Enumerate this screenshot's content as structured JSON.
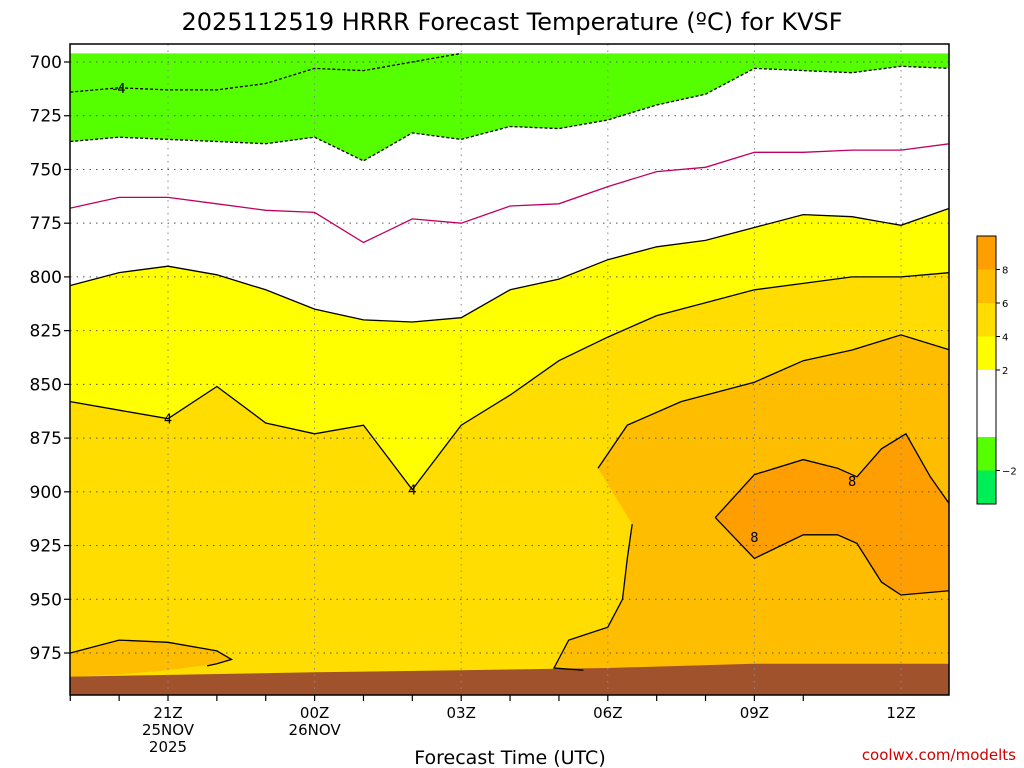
{
  "chart_data": {
    "type": "contour",
    "title": "2025112519 HRRR Forecast Temperature (ºC) for KVSF",
    "xlabel": "Forecast Time (UTC)",
    "credit": "coolwx.com/modelts",
    "y_ticks": [
      "700",
      "725",
      "750",
      "775",
      "800",
      "825",
      "850",
      "875",
      "900",
      "925",
      "950",
      "975"
    ],
    "y_levels": [
      700,
      725,
      750,
      775,
      800,
      825,
      850,
      875,
      900,
      925,
      950,
      975
    ],
    "ylim": [
      696,
      990
    ],
    "x_hours": [
      -2,
      -1,
      0,
      1,
      2,
      3,
      4,
      5,
      6,
      7,
      8,
      9,
      10,
      11,
      12,
      13
    ],
    "x_ticks": [
      {
        "hour": 0,
        "lines": [
          "21Z",
          "25NOV",
          "2025"
        ]
      },
      {
        "hour": 3,
        "lines": [
          "00Z",
          "26NOV"
        ]
      },
      {
        "hour": 6,
        "lines": [
          "03Z"
        ]
      },
      {
        "hour": 9,
        "lines": [
          "06Z"
        ]
      },
      {
        "hour": 12,
        "lines": [
          "09Z"
        ]
      },
      {
        "hour": 15,
        "lines": [
          "12Z"
        ]
      }
    ],
    "xlim": [
      -2,
      16
    ],
    "grid": true,
    "legend": "right",
    "colorbar": [
      {
        "label": "8",
        "from": 8,
        "to": 10,
        "color": "#ff9e00"
      },
      {
        "label": "6",
        "from": 6,
        "to": 8,
        "color": "#ffbd00"
      },
      {
        "label": "4",
        "from": 4,
        "to": 6,
        "color": "#ffdd00"
      },
      {
        "label": "2",
        "from": 2,
        "to": 4,
        "color": "#ffff00"
      },
      {
        "label": "",
        "from": -2,
        "to": 2,
        "color": "#ffffff"
      },
      {
        "label": "−2",
        "from": -4,
        "to": -2,
        "color": "#55ff00"
      },
      {
        "label": "",
        "from": -6,
        "to": -4,
        "color": "#00ee55"
      }
    ],
    "ground_color": "#a0522d",
    "surface_pressure": [
      [
        -2,
        986
      ],
      [
        3,
        984
      ],
      [
        6,
        983
      ],
      [
        9,
        982
      ],
      [
        12,
        980
      ],
      [
        16,
        980
      ]
    ],
    "fill_bands": [
      {
        "name": "-2 to -4",
        "color": "#55ff00",
        "top": [
          [
            -2,
            696
          ],
          [
            16,
            696
          ]
        ],
        "bottom": [
          [
            -2,
            737
          ],
          [
            -1,
            735
          ],
          [
            0,
            736
          ],
          [
            1,
            737
          ],
          [
            2,
            738
          ],
          [
            3,
            735
          ],
          [
            4,
            746
          ],
          [
            5,
            733
          ],
          [
            6,
            736
          ],
          [
            7,
            730
          ],
          [
            8,
            731
          ],
          [
            9,
            727
          ],
          [
            10,
            720
          ],
          [
            11,
            715
          ],
          [
            12,
            703
          ],
          [
            13,
            704
          ],
          [
            14,
            705
          ],
          [
            15,
            702
          ],
          [
            16,
            703
          ]
        ]
      },
      {
        "name": "2 to 4",
        "color": "#ffff00",
        "top": [
          [
            -2,
            804
          ],
          [
            -1,
            798
          ],
          [
            0,
            795
          ],
          [
            1,
            799
          ],
          [
            2,
            806
          ],
          [
            3,
            815
          ],
          [
            4,
            820
          ],
          [
            5,
            821
          ],
          [
            6,
            819
          ],
          [
            7,
            806
          ],
          [
            8,
            801
          ],
          [
            9,
            792
          ],
          [
            10,
            786
          ],
          [
            11,
            783
          ],
          [
            12,
            777
          ],
          [
            13,
            771
          ],
          [
            14,
            772
          ],
          [
            15,
            776
          ],
          [
            16,
            768
          ]
        ],
        "bottom": [
          [
            -2,
            986
          ],
          [
            16,
            980
          ]
        ]
      },
      {
        "name": "4 to 6",
        "color": "#ffdd00",
        "top": [
          [
            -2,
            858
          ],
          [
            -1,
            862
          ],
          [
            0,
            866
          ],
          [
            1,
            851
          ],
          [
            2,
            868
          ],
          [
            3,
            873
          ],
          [
            4,
            869
          ],
          [
            5,
            899
          ],
          [
            6,
            869
          ],
          [
            7,
            855
          ],
          [
            8,
            839
          ],
          [
            9,
            828
          ],
          [
            10,
            818
          ],
          [
            11,
            812
          ],
          [
            12,
            806
          ],
          [
            13,
            803
          ],
          [
            14,
            800
          ],
          [
            15,
            800
          ],
          [
            16,
            798
          ]
        ],
        "bottom": [
          [
            -2,
            986
          ],
          [
            16,
            980
          ]
        ]
      },
      {
        "name": "6 to 8",
        "color": "#ffbd00",
        "regions": [
          [
            [
              -2,
              975
            ],
            [
              -1,
              969
            ],
            [
              0,
              970
            ],
            [
              1,
              974
            ],
            [
              1.3,
              978
            ],
            [
              1,
              980
            ],
            [
              0,
              983
            ],
            [
              -1,
              985
            ],
            [
              -2,
              986
            ]
          ],
          [
            [
              8.8,
              889
            ],
            [
              9.4,
              869
            ],
            [
              10.5,
              858
            ],
            [
              12,
              849
            ],
            [
              13,
              839
            ],
            [
              14,
              834
            ],
            [
              15,
              827
            ],
            [
              16,
              834
            ],
            [
              16,
              980
            ],
            [
              14,
              981
            ],
            [
              12,
              982
            ],
            [
              10,
              983
            ],
            [
              8.5,
              983
            ],
            [
              7.9,
              982
            ],
            [
              8.2,
              969
            ],
            [
              9.0,
              963
            ],
            [
              9.3,
              950
            ],
            [
              9.4,
              931
            ],
            [
              9.5,
              915
            ]
          ]
        ]
      },
      {
        "name": "8 to 10",
        "color": "#ff9e00",
        "regions": [
          [
            [
              11.2,
              912
            ],
            [
              12,
              892
            ],
            [
              13,
              885
            ],
            [
              13.7,
              889
            ],
            [
              14.1,
              893
            ],
            [
              14.6,
              880
            ],
            [
              15.1,
              873
            ],
            [
              15.6,
              893
            ],
            [
              16,
              906
            ],
            [
              16,
              946
            ],
            [
              15,
              948
            ],
            [
              14.6,
              942
            ],
            [
              14.1,
              924
            ],
            [
              13.7,
              920
            ],
            [
              13,
              920
            ],
            [
              12,
              931
            ]
          ]
        ]
      }
    ],
    "contours": [
      {
        "value": 4,
        "color": "#000000",
        "dashed": false,
        "labels": [
          [
            0,
            866
          ],
          [
            5,
            899
          ]
        ],
        "points": [
          [
            -2,
            858
          ],
          [
            -1,
            862
          ],
          [
            0,
            866
          ],
          [
            1,
            851
          ],
          [
            2,
            868
          ],
          [
            3,
            873
          ],
          [
            4,
            869
          ],
          [
            5,
            899
          ],
          [
            6,
            869
          ],
          [
            7,
            855
          ],
          [
            8,
            839
          ],
          [
            9,
            828
          ],
          [
            10,
            818
          ],
          [
            11,
            812
          ],
          [
            12,
            806
          ],
          [
            13,
            803
          ],
          [
            14,
            800
          ],
          [
            15,
            800
          ],
          [
            16,
            798
          ]
        ]
      },
      {
        "value": 2,
        "color": "#000000",
        "dashed": false,
        "labels": [],
        "points": [
          [
            -2,
            804
          ],
          [
            -1,
            798
          ],
          [
            0,
            795
          ],
          [
            1,
            799
          ],
          [
            2,
            806
          ],
          [
            3,
            815
          ],
          [
            4,
            820
          ],
          [
            5,
            821
          ],
          [
            6,
            819
          ],
          [
            7,
            806
          ],
          [
            8,
            801
          ],
          [
            9,
            792
          ],
          [
            10,
            786
          ],
          [
            11,
            783
          ],
          [
            12,
            777
          ],
          [
            13,
            771
          ],
          [
            14,
            772
          ],
          [
            15,
            776
          ],
          [
            16,
            768
          ]
        ]
      },
      {
        "value": 0,
        "color": "#c00060",
        "dashed": false,
        "labels": [],
        "points": [
          [
            -2,
            768
          ],
          [
            -1,
            763
          ],
          [
            0,
            763
          ],
          [
            1,
            766
          ],
          [
            2,
            769
          ],
          [
            3,
            770
          ],
          [
            4,
            784
          ],
          [
            5,
            773
          ],
          [
            6,
            775
          ],
          [
            7,
            767
          ],
          [
            8,
            766
          ],
          [
            9,
            758
          ],
          [
            10,
            751
          ],
          [
            11,
            749
          ],
          [
            12,
            742
          ],
          [
            13,
            742
          ],
          [
            14,
            741
          ],
          [
            15,
            741
          ],
          [
            16,
            738
          ]
        ]
      },
      {
        "value": -2,
        "color": "#000000",
        "dashed": true,
        "labels": [],
        "points": [
          [
            -2,
            737
          ],
          [
            -1,
            735
          ],
          [
            0,
            736
          ],
          [
            1,
            737
          ],
          [
            2,
            738
          ],
          [
            3,
            735
          ],
          [
            4,
            746
          ],
          [
            5,
            733
          ],
          [
            6,
            736
          ],
          [
            7,
            730
          ],
          [
            8,
            731
          ],
          [
            9,
            727
          ],
          [
            10,
            720
          ],
          [
            11,
            715
          ],
          [
            12,
            703
          ],
          [
            13,
            704
          ],
          [
            14,
            705
          ],
          [
            15,
            702
          ],
          [
            16,
            703
          ]
        ]
      },
      {
        "value": -4,
        "color": "#000000",
        "dashed": true,
        "labels": [
          [
            -1,
            712
          ]
        ],
        "points": [
          [
            -2,
            714
          ],
          [
            -1,
            712
          ],
          [
            0,
            713
          ],
          [
            1,
            713
          ],
          [
            2,
            710
          ],
          [
            3,
            703
          ],
          [
            4,
            704
          ],
          [
            5,
            700
          ],
          [
            6,
            696
          ]
        ]
      },
      {
        "value": 6,
        "color": "#000000",
        "dashed": false,
        "labels": [],
        "points": [
          [
            9.5,
            915
          ],
          [
            9.4,
            931
          ],
          [
            9.3,
            950
          ],
          [
            9.0,
            963
          ],
          [
            8.2,
            969
          ],
          [
            7.9,
            982
          ],
          [
            8.5,
            983
          ]
        ]
      },
      {
        "value": 6,
        "color": "#000000",
        "dashed": false,
        "labels": [],
        "points": [
          [
            8.8,
            889
          ],
          [
            9.4,
            869
          ],
          [
            10.5,
            858
          ],
          [
            12,
            849
          ],
          [
            13,
            839
          ],
          [
            14,
            834
          ],
          [
            15,
            827
          ],
          [
            16,
            834
          ]
        ]
      },
      {
        "value": 6,
        "color": "#000000",
        "dashed": false,
        "labels": [],
        "points": [
          [
            -2,
            975
          ],
          [
            -1,
            969
          ],
          [
            0,
            970
          ],
          [
            1,
            974
          ],
          [
            1.3,
            978
          ],
          [
            1,
            980
          ],
          [
            0.8,
            981
          ]
        ]
      },
      {
        "value": 8,
        "color": "#000000",
        "dashed": false,
        "labels": [
          [
            14.0,
            895
          ],
          [
            12.0,
            921
          ]
        ],
        "points": [
          [
            11.2,
            912
          ],
          [
            12,
            892
          ],
          [
            13,
            885
          ],
          [
            13.7,
            889
          ],
          [
            14.1,
            893
          ],
          [
            14.6,
            880
          ],
          [
            15.1,
            873
          ],
          [
            15.6,
            893
          ],
          [
            16,
            906
          ]
        ]
      },
      {
        "value": 8,
        "color": "#000000",
        "dashed": false,
        "labels": [],
        "points": [
          [
            11.2,
            912
          ],
          [
            12,
            931
          ],
          [
            13,
            920
          ],
          [
            13.7,
            920
          ],
          [
            14.1,
            924
          ],
          [
            14.6,
            942
          ],
          [
            15,
            948
          ],
          [
            16,
            946
          ]
        ]
      }
    ]
  }
}
